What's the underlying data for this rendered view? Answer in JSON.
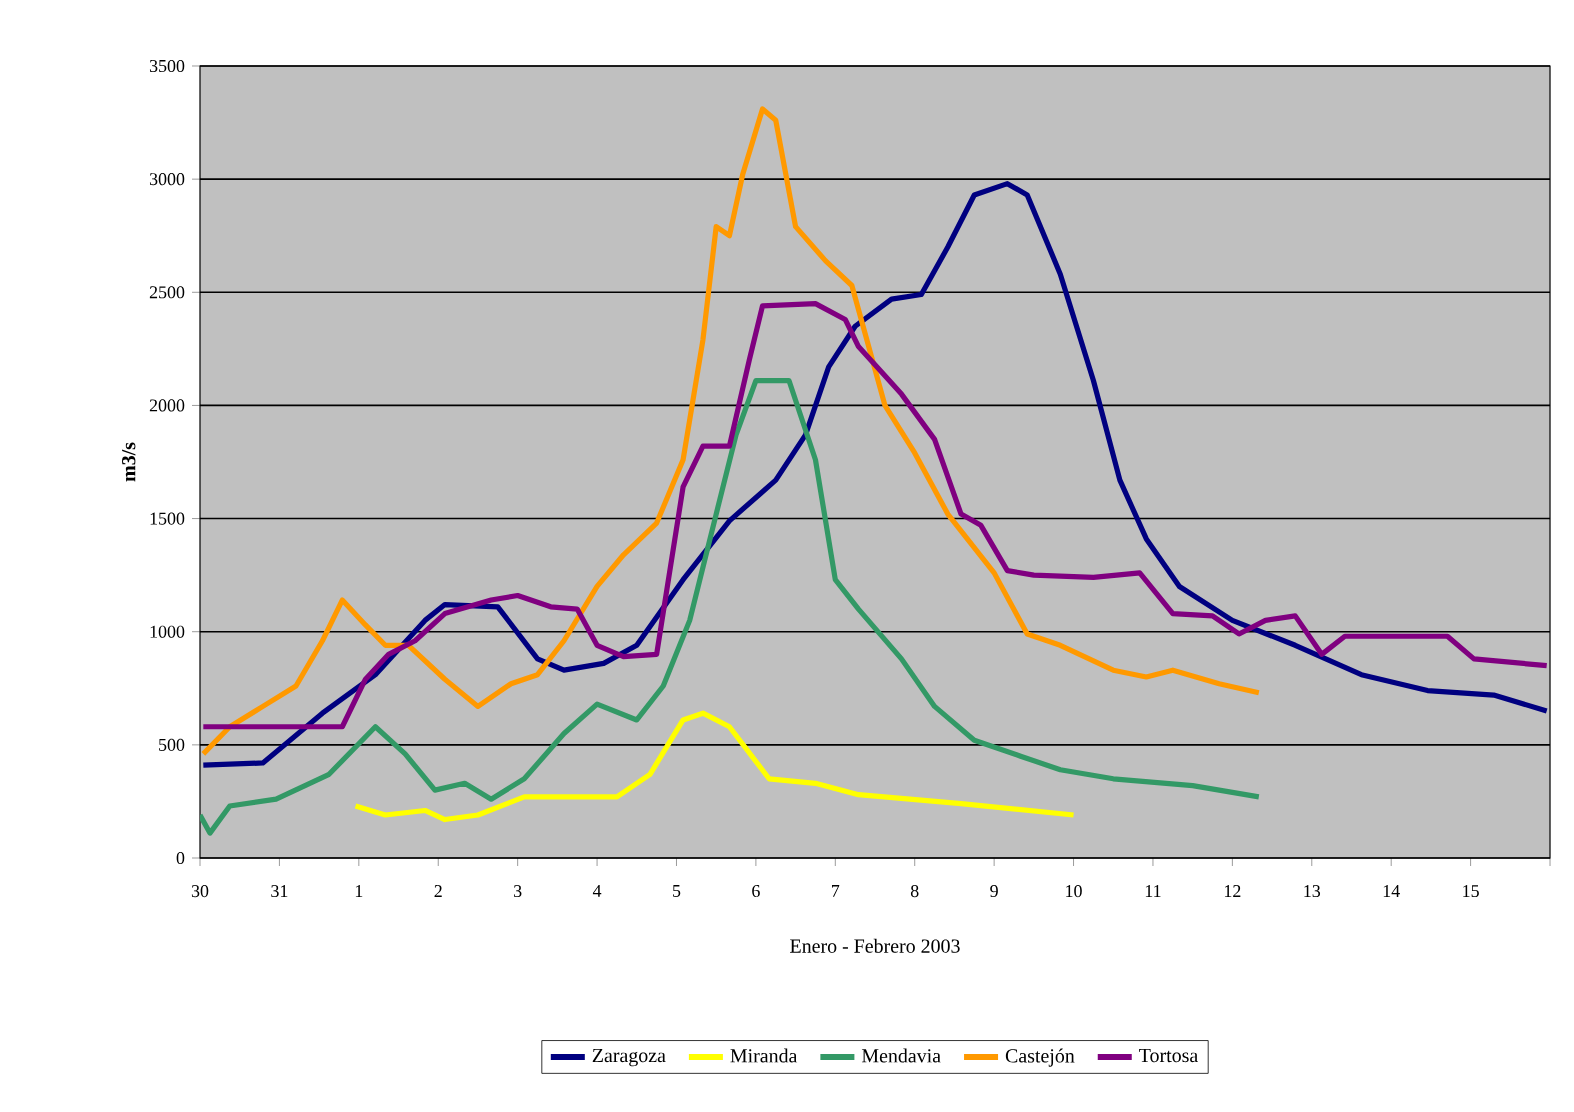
{
  "chart_data": {
    "type": "line",
    "xlabel": "Enero - Febrero 2003",
    "ylabel": "m3/s",
    "xlim": [
      "2003-01-30",
      "2003-02-16"
    ],
    "ylim": [
      0,
      3500
    ],
    "xticks": [
      {
        "value": "2003-01-30",
        "label": "30"
      },
      {
        "value": "2003-01-31",
        "label": "31"
      },
      {
        "value": "2003-02-01",
        "label": "1"
      },
      {
        "value": "2003-02-02",
        "label": "2"
      },
      {
        "value": "2003-02-03",
        "label": "3"
      },
      {
        "value": "2003-02-04",
        "label": "4"
      },
      {
        "value": "2003-02-05",
        "label": "5"
      },
      {
        "value": "2003-02-06",
        "label": "6"
      },
      {
        "value": "2003-02-07",
        "label": "7"
      },
      {
        "value": "2003-02-08",
        "label": "8"
      },
      {
        "value": "2003-02-09",
        "label": "9"
      },
      {
        "value": "2003-02-10",
        "label": "10"
      },
      {
        "value": "2003-02-11",
        "label": "11"
      },
      {
        "value": "2003-02-12",
        "label": "12"
      },
      {
        "value": "2003-02-13",
        "label": "13"
      },
      {
        "value": "2003-02-14",
        "label": "14"
      },
      {
        "value": "2003-02-15",
        "label": "15"
      },
      {
        "value": "2003-02-16",
        "label": null
      }
    ],
    "yticks": [
      0,
      500,
      1000,
      1500,
      2000,
      2500,
      3000,
      3500
    ],
    "grid": "y",
    "legend": "bottom",
    "marker": "none",
    "line_style": "solid",
    "series": [
      {
        "name": "Zaragoza",
        "color": "#000080",
        "x": [
          "2003-01-30T01:00",
          "2003-01-30T19:00",
          "2003-01-31T13:00",
          "2003-02-01T05:00",
          "2003-02-01T20:00",
          "2003-02-02T02:00",
          "2003-02-02T18:00",
          "2003-02-03T06:00",
          "2003-02-03T14:00",
          "2003-02-04T02:00",
          "2003-02-04T12:00",
          "2003-02-05T02:00",
          "2003-02-05T16:00",
          "2003-02-06T06:00",
          "2003-02-06T15:00",
          "2003-02-06T22:00",
          "2003-02-07T06:00",
          "2003-02-07T17:00",
          "2003-02-08T02:00",
          "2003-02-08T10:00",
          "2003-02-08T18:00",
          "2003-02-09T04:00",
          "2003-02-09T10:00",
          "2003-02-09T20:00",
          "2003-02-10T06:00",
          "2003-02-10T14:00",
          "2003-02-10T22:00",
          "2003-02-11T08:00",
          "2003-02-12T00:00",
          "2003-02-12T19:00",
          "2003-02-13T15:00",
          "2003-02-14T11:00",
          "2003-02-15T07:00",
          "2003-02-15T23:00"
        ],
        "values": [
          410,
          420,
          640,
          810,
          1050,
          1120,
          1110,
          880,
          830,
          860,
          940,
          1230,
          1490,
          1670,
          1870,
          2170,
          2350,
          2470,
          2490,
          2700,
          2930,
          2980,
          2930,
          2580,
          2110,
          1670,
          1410,
          1200,
          1050,
          940,
          810,
          740,
          720,
          650
        ]
      },
      {
        "name": "Miranda",
        "color": "#ffff00",
        "x": [
          "2003-01-31T23:00",
          "2003-02-01T08:00",
          "2003-02-01T20:00",
          "2003-02-02T02:00",
          "2003-02-02T12:00",
          "2003-02-03T02:00",
          "2003-02-04T06:00",
          "2003-02-04T16:00",
          "2003-02-05T02:00",
          "2003-02-05T08:00",
          "2003-02-05T16:00",
          "2003-02-06T04:00",
          "2003-02-06T18:00",
          "2003-02-07T07:00",
          "2003-02-08T14:00",
          "2003-02-10T00:00"
        ],
        "values": [
          230,
          190,
          210,
          170,
          190,
          270,
          270,
          370,
          610,
          640,
          580,
          350,
          330,
          280,
          240,
          190
        ]
      },
      {
        "name": "Mendavia",
        "color": "#339966",
        "x": [
          "2003-01-30T00:00",
          "2003-01-30T03:00",
          "2003-01-30T09:00",
          "2003-01-30T23:00",
          "2003-01-31T15:00",
          "2003-02-01T05:00",
          "2003-02-01T14:00",
          "2003-02-01T23:00",
          "2003-02-02T08:00",
          "2003-02-02T16:00",
          "2003-02-03T02:00",
          "2003-02-03T14:00",
          "2003-02-04T00:00",
          "2003-02-04T12:00",
          "2003-02-04T20:00",
          "2003-02-05T04:00",
          "2003-02-05T12:00",
          "2003-02-05T18:00",
          "2003-02-06T00:00",
          "2003-02-06T10:00",
          "2003-02-06T18:00",
          "2003-02-07T00:00",
          "2003-02-07T07:00",
          "2003-02-07T20:00",
          "2003-02-08T06:00",
          "2003-02-08T18:00",
          "2003-02-09T08:00",
          "2003-02-09T20:00",
          "2003-02-10T12:00",
          "2003-02-11T12:00",
          "2003-02-12T08:00"
        ],
        "values": [
          190,
          110,
          230,
          260,
          370,
          580,
          460,
          300,
          330,
          260,
          350,
          550,
          680,
          610,
          760,
          1050,
          1520,
          1870,
          2110,
          2110,
          1760,
          1230,
          1100,
          880,
          670,
          520,
          450,
          390,
          350,
          320,
          270
        ]
      },
      {
        "name": "Castejón",
        "color": "#ff9900",
        "x": [
          "2003-01-30T01:00",
          "2003-01-30T09:00",
          "2003-01-30T19:00",
          "2003-01-31T05:00",
          "2003-01-31T13:00",
          "2003-01-31T19:00",
          "2003-02-01T02:00",
          "2003-02-01T08:00",
          "2003-02-01T15:00",
          "2003-02-02T02:00",
          "2003-02-02T12:00",
          "2003-02-02T22:00",
          "2003-02-03T06:00",
          "2003-02-03T14:00",
          "2003-02-04T00:00",
          "2003-02-04T08:00",
          "2003-02-04T18:00",
          "2003-02-05T02:00",
          "2003-02-05T08:00",
          "2003-02-05T12:00",
          "2003-02-05T16:00",
          "2003-02-05T20:00",
          "2003-02-06T02:00",
          "2003-02-06T06:00",
          "2003-02-06T12:00",
          "2003-02-06T21:00",
          "2003-02-07T05:00",
          "2003-02-07T15:00",
          "2003-02-08T00:00",
          "2003-02-08T10:00",
          "2003-02-09T00:00",
          "2003-02-09T10:00",
          "2003-02-09T20:00",
          "2003-02-10T12:00",
          "2003-02-10T22:00",
          "2003-02-11T06:00",
          "2003-02-11T20:00",
          "2003-02-12T08:00"
        ],
        "values": [
          460,
          580,
          670,
          760,
          960,
          1140,
          1030,
          940,
          940,
          790,
          670,
          770,
          810,
          960,
          1200,
          1340,
          1480,
          1760,
          2290,
          2790,
          2750,
          3020,
          3310,
          3260,
          2790,
          2640,
          2530,
          2000,
          1790,
          1520,
          1260,
          990,
          940,
          830,
          800,
          830,
          770,
          730
        ]
      },
      {
        "name": "Tortosa",
        "color": "#800080",
        "x": [
          "2003-01-30T01:00",
          "2003-01-31T19:00",
          "2003-02-01T02:00",
          "2003-02-01T09:00",
          "2003-02-01T17:00",
          "2003-02-02T02:00",
          "2003-02-02T16:00",
          "2003-02-03T00:00",
          "2003-02-03T10:00",
          "2003-02-03T18:00",
          "2003-02-04T00:00",
          "2003-02-04T08:00",
          "2003-02-04T18:00",
          "2003-02-05T02:00",
          "2003-02-05T08:00",
          "2003-02-05T16:00",
          "2003-02-05T22:00",
          "2003-02-06T02:00",
          "2003-02-06T18:00",
          "2003-02-07T03:00",
          "2003-02-07T07:00",
          "2003-02-07T20:00",
          "2003-02-08T06:00",
          "2003-02-08T14:00",
          "2003-02-08T20:00",
          "2003-02-09T04:00",
          "2003-02-09T12:00",
          "2003-02-10T06:00",
          "2003-02-10T20:00",
          "2003-02-11T06:00",
          "2003-02-11T18:00",
          "2003-02-12T02:00",
          "2003-02-12T10:00",
          "2003-02-12T19:00",
          "2003-02-13T03:00",
          "2003-02-13T10:00",
          "2003-02-14T17:00",
          "2003-02-15T01:00",
          "2003-02-15T23:00"
        ],
        "values": [
          580,
          580,
          790,
          900,
          960,
          1080,
          1140,
          1160,
          1110,
          1100,
          940,
          890,
          900,
          1640,
          1820,
          1820,
          2200,
          2440,
          2450,
          2380,
          2260,
          2050,
          1850,
          1520,
          1470,
          1270,
          1250,
          1240,
          1260,
          1080,
          1070,
          990,
          1050,
          1070,
          900,
          980,
          980,
          880,
          850
        ]
      }
    ]
  }
}
